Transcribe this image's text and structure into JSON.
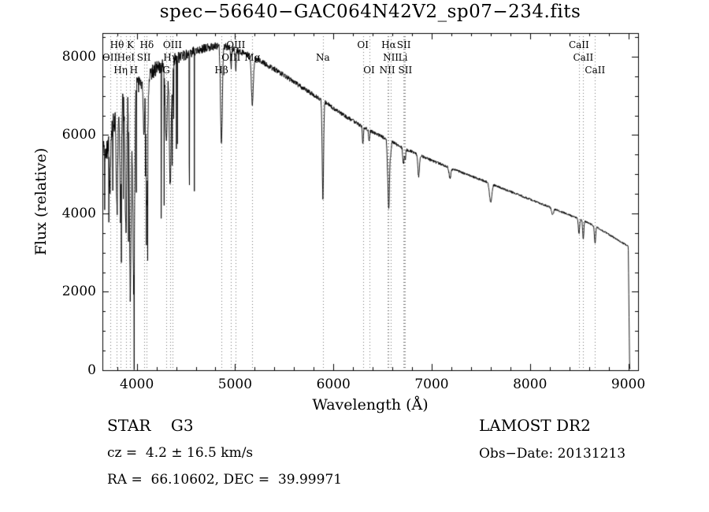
{
  "title": "spec−56640−GAC064N42V2_sp07−234.fits",
  "annotations": {
    "classification": "STAR    G3",
    "survey": "LAMOST DR2",
    "cz": "cz =  4.2 ± 16.5 km/s",
    "obs_date": "Obs−Date: 20131213",
    "ra_dec": "RA =  66.10602, DEC =  39.99971"
  },
  "chart_data": {
    "type": "line",
    "title": "spec−56640−GAC064N42V2_sp07−234.fits",
    "xlabel": "Wavelength (Å)",
    "ylabel": "Flux (relative)",
    "xlim": [
      3650,
      9100
    ],
    "ylim": [
      0,
      8600
    ],
    "x_major_ticks": [
      4000,
      5000,
      6000,
      7000,
      8000,
      9000
    ],
    "x_minor_step": 200,
    "y_major_ticks": [
      0,
      2000,
      4000,
      6000,
      8000
    ],
    "y_minor_step": 500,
    "grid": "dotted vertical lines at labeled spectral features only",
    "legend": "none",
    "continuum": [
      [
        3690,
        5600
      ],
      [
        3750,
        6200
      ],
      [
        3800,
        6500
      ],
      [
        3850,
        6800
      ],
      [
        3900,
        7000
      ],
      [
        3950,
        7100
      ],
      [
        4000,
        7250
      ],
      [
        4100,
        7500
      ],
      [
        4200,
        7700
      ],
      [
        4300,
        7850
      ],
      [
        4400,
        7950
      ],
      [
        4500,
        8050
      ],
      [
        4600,
        8150
      ],
      [
        4700,
        8220
      ],
      [
        4800,
        8260
      ],
      [
        4900,
        8260
      ],
      [
        5000,
        8180
      ],
      [
        5100,
        8080
      ],
      [
        5200,
        7960
      ],
      [
        5300,
        7820
      ],
      [
        5400,
        7680
      ],
      [
        5500,
        7520
      ],
      [
        5600,
        7350
      ],
      [
        5700,
        7180
      ],
      [
        5800,
        7020
      ],
      [
        5900,
        6870
      ],
      [
        6000,
        6680
      ],
      [
        6100,
        6520
      ],
      [
        6200,
        6360
      ],
      [
        6300,
        6210
      ],
      [
        6400,
        6070
      ],
      [
        6500,
        5950
      ],
      [
        6600,
        5820
      ],
      [
        6700,
        5680
      ],
      [
        6800,
        5570
      ],
      [
        6900,
        5460
      ],
      [
        7000,
        5350
      ],
      [
        7100,
        5250
      ],
      [
        7200,
        5150
      ],
      [
        7300,
        5050
      ],
      [
        7400,
        4950
      ],
      [
        7500,
        4860
      ],
      [
        7600,
        4760
      ],
      [
        7700,
        4660
      ],
      [
        7800,
        4560
      ],
      [
        7900,
        4460
      ],
      [
        8000,
        4360
      ],
      [
        8100,
        4260
      ],
      [
        8200,
        4160
      ],
      [
        8300,
        4060
      ],
      [
        8400,
        3960
      ],
      [
        8500,
        3860
      ],
      [
        8600,
        3750
      ],
      [
        8700,
        3620
      ],
      [
        8800,
        3470
      ],
      [
        8900,
        3310
      ],
      [
        9000,
        3160
      ],
      [
        9040,
        3080
      ]
    ],
    "absorption_lines": [
      {
        "label": "OII",
        "wavelength": 3727,
        "row": 2,
        "depth": 0.22,
        "sigma": 6
      },
      {
        "label": "Hθ",
        "wavelength": 3798,
        "row": 1,
        "depth": 0.38,
        "sigma": 7
      },
      {
        "label": "Hη",
        "wavelength": 3835,
        "row": 3,
        "depth": 0.42,
        "sigma": 7
      },
      {
        "label": "HeI",
        "wavelength": 3889,
        "row": 2,
        "depth": 0.5,
        "sigma": 8
      },
      {
        "label": "K",
        "wavelength": 3934,
        "row": 1,
        "depth": 0.72,
        "sigma": 9
      },
      {
        "label": "H",
        "wavelength": 3969,
        "row": 3,
        "depth": 0.7,
        "sigma": 9
      },
      {
        "label": "SII",
        "wavelength": 4072,
        "row": 2,
        "depth": 0.2,
        "sigma": 6
      },
      {
        "label": "Hδ",
        "wavelength": 4102,
        "row": 1,
        "depth": 0.45,
        "sigma": 9
      },
      {
        "label": "G",
        "wavelength": 4300,
        "row": 3,
        "depth": 0.25,
        "sigma": 10
      },
      {
        "label": "Hγ",
        "wavelength": 4340,
        "row": 2,
        "depth": 0.4,
        "sigma": 9
      },
      {
        "label": "OIII",
        "wavelength": 4363,
        "row": 1,
        "depth": 0.12,
        "sigma": 5
      },
      {
        "label": "Hβ",
        "wavelength": 4861,
        "row": 3,
        "depth": 0.3,
        "sigma": 9
      },
      {
        "label": "OIII",
        "wavelength": 4959,
        "row": 2,
        "depth": 0.06,
        "sigma": 5
      },
      {
        "label": "OIII",
        "wavelength": 5007,
        "row": 1,
        "depth": 0.06,
        "sigma": 5
      },
      {
        "label": "Mg",
        "wavelength": 5175,
        "row": 2,
        "depth": 0.15,
        "sigma": 10
      },
      {
        "label": "Na",
        "wavelength": 5893,
        "row": 2,
        "depth": 0.36,
        "sigma": 7
      },
      {
        "label": "OI",
        "wavelength": 6300,
        "row": 1,
        "depth": 0.07,
        "sigma": 5
      },
      {
        "label": "OI",
        "wavelength": 6363,
        "row": 3,
        "depth": 0.05,
        "sigma": 5
      },
      {
        "label": "NII",
        "wavelength": 6548,
        "row": 3,
        "depth": 0.05,
        "sigma": 5
      },
      {
        "label": "Hα",
        "wavelength": 6563,
        "row": 1,
        "depth": 0.3,
        "sigma": 8
      },
      {
        "label": "NII",
        "wavelength": 6584,
        "row": 2,
        "depth": 0.05,
        "sigma": 5
      },
      {
        "label": "Li",
        "wavelength": 6708,
        "row": 2,
        "depth": 0.05,
        "sigma": 5
      },
      {
        "label": "SII",
        "wavelength": 6717,
        "row": 1,
        "depth": 0.05,
        "sigma": 5
      },
      {
        "label": "SII",
        "wavelength": 6731,
        "row": 3,
        "depth": 0.05,
        "sigma": 5
      },
      {
        "label": "",
        "wavelength": 6867,
        "row": 0,
        "depth": 0.1,
        "sigma": 8
      },
      {
        "label": "",
        "wavelength": 7186,
        "row": 0,
        "depth": 0.05,
        "sigma": 10
      },
      {
        "label": "",
        "wavelength": 7600,
        "row": 0,
        "depth": 0.1,
        "sigma": 12
      },
      {
        "label": "",
        "wavelength": 8230,
        "row": 0,
        "depth": 0.04,
        "sigma": 10
      },
      {
        "label": "CaII",
        "wavelength": 8498,
        "row": 1,
        "depth": 0.1,
        "sigma": 6
      },
      {
        "label": "CaII",
        "wavelength": 8542,
        "row": 2,
        "depth": 0.12,
        "sigma": 6
      },
      {
        "label": "CaII",
        "wavelength": 8662,
        "row": 3,
        "depth": 0.12,
        "sigma": 6
      }
    ],
    "noise": {
      "seed": 20131213,
      "amplitude_profile": [
        [
          3655,
          650
        ],
        [
          3800,
          600
        ],
        [
          3900,
          560
        ],
        [
          4000,
          480
        ],
        [
          4200,
          380
        ],
        [
          4400,
          300
        ],
        [
          4700,
          220
        ],
        [
          5000,
          170
        ],
        [
          5500,
          130
        ],
        [
          6000,
          105
        ],
        [
          6500,
          85
        ],
        [
          7000,
          70
        ],
        [
          7600,
          60
        ],
        [
          8200,
          55
        ],
        [
          9040,
          48
        ]
      ],
      "spike_probability": 0.05,
      "spike_region": [
        3655,
        4600
      ],
      "spike_depth_range": [
        0.15,
        0.55
      ]
    },
    "cutoff": {
      "start": 9000,
      "end": 9014,
      "floor": 40,
      "data_end": 9024
    },
    "line_color": "#000000",
    "dotted_line_color": "#777777"
  }
}
